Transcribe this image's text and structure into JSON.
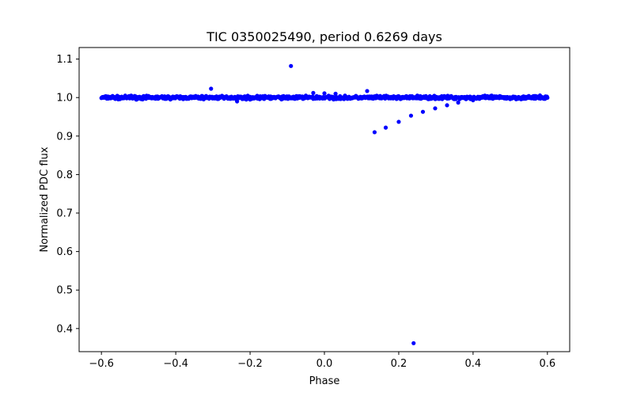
{
  "chart_data": {
    "type": "scatter",
    "title": "TIC 0350025490, period 0.6269 days",
    "xlabel": "Phase",
    "ylabel": "Normalized PDC flux",
    "xlim": [
      -0.66,
      0.66
    ],
    "ylim": [
      0.34,
      1.13
    ],
    "xticks": [
      -0.6,
      -0.4,
      -0.2,
      0.0,
      0.2,
      0.4,
      0.6
    ],
    "xtick_labels": [
      "−0.6",
      "−0.4",
      "−0.2",
      "0.0",
      "0.2",
      "0.4",
      "0.6"
    ],
    "yticks": [
      0.4,
      0.5,
      0.6,
      0.7,
      0.8,
      0.9,
      1.0,
      1.1
    ],
    "ytick_labels": [
      "0.4",
      "0.5",
      "0.6",
      "0.7",
      "0.8",
      "0.9",
      "1.0",
      "1.1"
    ],
    "grid": false,
    "marker_color": "#0000ff",
    "baseline": {
      "x_start": -0.6,
      "x_end": 0.6,
      "y": 1.0,
      "scatter": 0.004
    },
    "series": [
      {
        "name": "flux",
        "points": [
          [
            -0.305,
            1.023
          ],
          [
            -0.09,
            1.082
          ],
          [
            -0.03,
            1.012
          ],
          [
            0.0,
            1.011
          ],
          [
            0.115,
            1.017
          ],
          [
            0.135,
            0.91
          ],
          [
            0.165,
            0.922
          ],
          [
            0.2,
            0.937
          ],
          [
            0.233,
            0.953
          ],
          [
            0.265,
            0.963
          ],
          [
            0.298,
            0.972
          ],
          [
            0.33,
            0.98
          ],
          [
            0.36,
            0.987
          ],
          [
            0.24,
            0.362
          ],
          [
            -0.57,
            1.004
          ],
          [
            -0.55,
            0.996
          ],
          [
            -0.52,
            1.005
          ],
          [
            -0.48,
            0.997
          ],
          [
            -0.43,
            1.003
          ],
          [
            -0.38,
            0.996
          ],
          [
            -0.33,
            1.004
          ],
          [
            -0.27,
            0.997
          ],
          [
            -0.235,
            0.99
          ],
          [
            -0.2,
            0.995
          ],
          [
            -0.15,
            1.003
          ],
          [
            -0.1,
            0.998
          ],
          [
            -0.05,
            1.005
          ],
          [
            0.03,
            1.01
          ],
          [
            0.07,
            0.997
          ],
          [
            0.15,
            1.004
          ],
          [
            0.25,
            1.005
          ],
          [
            0.31,
            0.997
          ],
          [
            0.4,
            0.993
          ],
          [
            0.45,
            1.005
          ],
          [
            0.5,
            0.996
          ],
          [
            0.55,
            1.004
          ],
          [
            0.59,
            0.997
          ],
          [
            0.595,
            1.003
          ]
        ]
      }
    ]
  }
}
